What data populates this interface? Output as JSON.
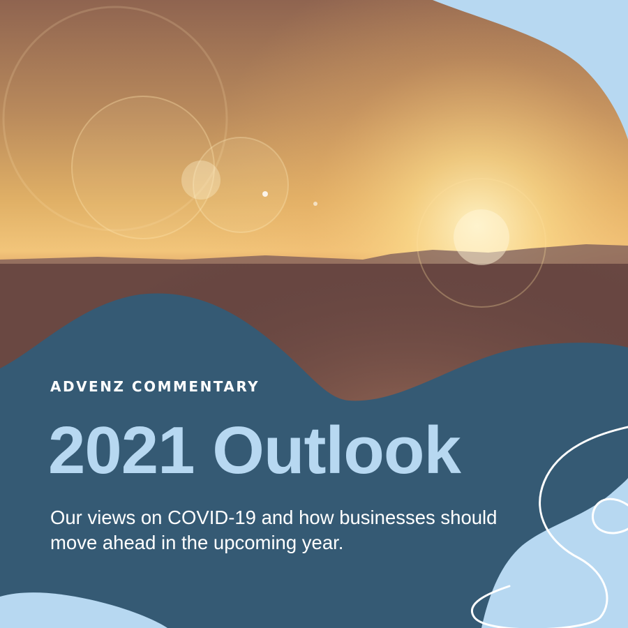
{
  "eyebrow": "ADVENZ COMMENTARY",
  "headline": "2021 Outlook",
  "subtitle": "Our views on COVID-19 and how businesses should move ahead in the upcoming year.",
  "colors": {
    "navy_blob": "#355a74",
    "light_blue": "#b7d8f1",
    "white": "#ffffff",
    "sky_top": "#9a6a4e",
    "sun_glow": "#fde7a1"
  },
  "background_image": "sunset-over-town-photo"
}
